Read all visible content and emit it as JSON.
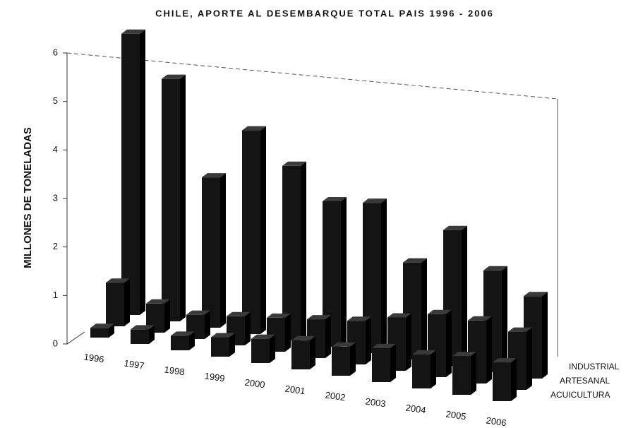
{
  "chart_data": {
    "type": "bar3d",
    "title": "CHILE, APORTE AL DESEMBARQUE TOTAL PAIS 1996 - 2006",
    "y_label": "MILLONES DE TONELADAS",
    "categories": [
      "1996",
      "1997",
      "1998",
      "1999",
      "2000",
      "2001",
      "2002",
      "2003",
      "2004",
      "2005",
      "2006"
    ],
    "series": [
      {
        "name": "INDUSTRIAL",
        "color": "#141414",
        "values": [
          5.8,
          5.0,
          3.1,
          4.2,
          3.6,
          3.0,
          3.1,
          2.0,
          2.8,
          2.1,
          1.7
        ]
      },
      {
        "name": "ARTESANAL",
        "color": "#141414",
        "values": [
          0.9,
          0.6,
          0.5,
          0.6,
          0.7,
          0.8,
          0.9,
          1.1,
          1.3,
          1.3,
          1.2
        ]
      },
      {
        "name": "ACUICULTURA",
        "color": "#141414",
        "values": [
          0.2,
          0.3,
          0.3,
          0.4,
          0.5,
          0.6,
          0.6,
          0.7,
          0.7,
          0.8,
          0.8
        ]
      }
    ],
    "ylim": [
      0,
      6
    ],
    "yticks": [
      0,
      1,
      2,
      3,
      4,
      5,
      6
    ]
  }
}
